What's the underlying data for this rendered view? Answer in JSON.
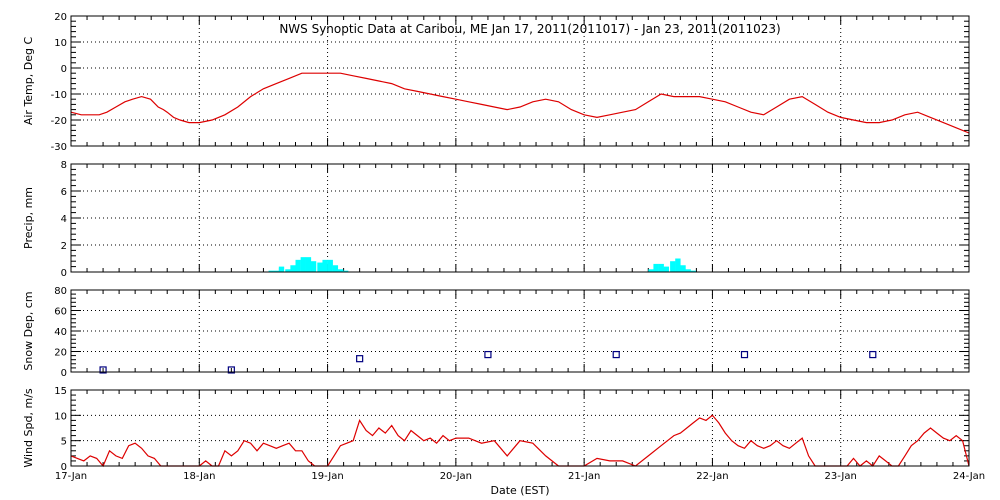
{
  "chart_data": {
    "type": "line",
    "title": "NWS Synoptic Data at Caribou, ME   Jan 17, 2011(2011017) - Jan 23, 2011(2011023)",
    "xlabel": "Date (EST)",
    "x_ticks": [
      "17-Jan",
      "18-Jan",
      "19-Jan",
      "20-Jan",
      "21-Jan",
      "22-Jan",
      "23-Jan",
      "24-Jan"
    ],
    "x_unit": "days since 17-Jan 00:00",
    "xlim": [
      0,
      7
    ],
    "grid": true,
    "panels": [
      {
        "name": "air-temp",
        "ylabel": "Air Temp, Deg C",
        "type": "line",
        "color": "#dd0000",
        "ylim": [
          -30,
          20
        ],
        "yticks": [
          20,
          10,
          0,
          -10,
          -20,
          -30
        ],
        "x": [
          0,
          0.08,
          0.15,
          0.22,
          0.28,
          0.35,
          0.42,
          0.48,
          0.55,
          0.62,
          0.68,
          0.72,
          0.75,
          0.8,
          0.85,
          0.92,
          1.0,
          1.1,
          1.2,
          1.3,
          1.4,
          1.5,
          1.6,
          1.7,
          1.8,
          1.9,
          2.0,
          2.1,
          2.2,
          2.3,
          2.4,
          2.5,
          2.6,
          2.7,
          2.8,
          2.9,
          3.0,
          3.1,
          3.2,
          3.3,
          3.4,
          3.5,
          3.6,
          3.7,
          3.8,
          3.9,
          4.0,
          4.1,
          4.2,
          4.3,
          4.4,
          4.5,
          4.6,
          4.7,
          4.8,
          4.9,
          5.0,
          5.1,
          5.2,
          5.3,
          5.4,
          5.5,
          5.6,
          5.7,
          5.8,
          5.9,
          6.0,
          6.1,
          6.2,
          6.3,
          6.4,
          6.5,
          6.6,
          6.7,
          6.8,
          6.9,
          7.0
        ],
        "y": [
          -17,
          -18,
          -18,
          -18,
          -17,
          -15,
          -13,
          -12,
          -11,
          -12,
          -15,
          -16,
          -17,
          -19,
          -20,
          -21,
          -21,
          -20,
          -18,
          -15,
          -11,
          -8,
          -6,
          -4,
          -2,
          -2,
          -2,
          -2,
          -3,
          -4,
          -5,
          -6,
          -8,
          -9,
          -10,
          -11,
          -12,
          -13,
          -14,
          -15,
          -16,
          -15,
          -13,
          -12,
          -13,
          -16,
          -18,
          -19,
          -18,
          -17,
          -16,
          -13,
          -10,
          -11,
          -11,
          -11,
          -12,
          -13,
          -15,
          -17,
          -18,
          -15,
          -12,
          -11,
          -14,
          -17,
          -19,
          -20,
          -21,
          -21,
          -20,
          -18,
          -17,
          -19,
          -21,
          -23,
          -25
        ]
      },
      {
        "name": "precip",
        "ylabel": "Precip, mm",
        "type": "bar",
        "color": "#00ffff",
        "ylim": [
          0,
          8
        ],
        "yticks": [
          8,
          6,
          4,
          2,
          0
        ],
        "bar_width": 0.0417,
        "x": [
          1.54,
          1.58,
          1.62,
          1.67,
          1.71,
          1.75,
          1.79,
          1.83,
          1.87,
          1.92,
          1.96,
          2.0,
          2.04,
          2.08,
          2.12,
          2.17,
          2.21,
          2.25,
          2.29,
          4.5,
          4.54,
          4.58,
          4.62,
          4.67,
          4.71,
          4.75,
          4.79,
          4.83,
          4.87
        ],
        "values": [
          0.1,
          0.1,
          0.4,
          0.2,
          0.5,
          0.9,
          1.1,
          1.1,
          0.8,
          0.7,
          0.9,
          0.9,
          0.5,
          0.2,
          0.1,
          0,
          0,
          0,
          0,
          0.2,
          0.6,
          0.6,
          0.4,
          0.8,
          1.0,
          0.5,
          0.2,
          0.1,
          0
        ]
      },
      {
        "name": "snow-depth",
        "ylabel": "Snow Dep, cm",
        "type": "scatter",
        "color": "#000080",
        "ylim": [
          0,
          80
        ],
        "yticks": [
          80,
          60,
          40,
          20,
          0
        ],
        "x": [
          0.25,
          1.25,
          2.25,
          3.25,
          4.25,
          5.25,
          6.25
        ],
        "y": [
          2,
          2,
          13,
          17,
          17,
          17,
          17
        ]
      },
      {
        "name": "wind-speed",
        "ylabel": "Wind Spd, m/s",
        "type": "line",
        "color": "#dd0000",
        "ylim": [
          0,
          15
        ],
        "yticks": [
          15,
          10,
          5,
          0
        ],
        "x": [
          0,
          0.05,
          0.1,
          0.15,
          0.2,
          0.25,
          0.3,
          0.35,
          0.4,
          0.45,
          0.5,
          0.55,
          0.6,
          0.65,
          0.7,
          0.75,
          0.8,
          0.85,
          0.9,
          0.95,
          1.0,
          1.05,
          1.1,
          1.15,
          1.2,
          1.25,
          1.3,
          1.35,
          1.4,
          1.45,
          1.5,
          1.55,
          1.6,
          1.65,
          1.7,
          1.75,
          1.8,
          1.85,
          1.9,
          1.95,
          2.0,
          2.05,
          2.1,
          2.15,
          2.2,
          2.25,
          2.3,
          2.35,
          2.4,
          2.45,
          2.5,
          2.55,
          2.6,
          2.65,
          2.7,
          2.75,
          2.8,
          2.85,
          2.9,
          2.95,
          3.0,
          3.1,
          3.2,
          3.3,
          3.4,
          3.5,
          3.6,
          3.7,
          3.8,
          3.9,
          4.0,
          4.1,
          4.2,
          4.3,
          4.4,
          4.5,
          4.6,
          4.65,
          4.7,
          4.75,
          4.8,
          4.85,
          4.9,
          4.95,
          5.0,
          5.05,
          5.1,
          5.15,
          5.2,
          5.25,
          5.3,
          5.35,
          5.4,
          5.45,
          5.5,
          5.55,
          5.6,
          5.65,
          5.7,
          5.75,
          5.8,
          5.85,
          5.9,
          5.95,
          6.0,
          6.05,
          6.1,
          6.15,
          6.2,
          6.25,
          6.3,
          6.35,
          6.4,
          6.45,
          6.5,
          6.55,
          6.6,
          6.65,
          6.7,
          6.75,
          6.8,
          6.85,
          6.9,
          6.95,
          7.0
        ],
        "y": [
          2,
          1.5,
          1,
          2,
          1.5,
          0,
          3,
          2,
          1.5,
          4,
          4.5,
          3.5,
          2,
          1.5,
          0,
          0,
          0,
          0,
          0,
          0,
          0,
          1,
          0,
          0,
          3,
          2,
          3,
          5,
          4.5,
          3,
          4.5,
          4,
          3.5,
          4,
          4.5,
          3,
          3,
          1,
          0,
          0,
          0,
          2,
          4,
          4.5,
          5,
          9,
          7,
          6,
          7.5,
          6.5,
          8,
          6,
          5,
          7,
          6,
          5,
          5.5,
          4.5,
          6,
          5,
          5.5,
          5.5,
          4.5,
          5,
          2,
          5,
          4.5,
          2,
          0,
          0,
          0,
          1.5,
          1,
          1,
          0,
          2,
          4,
          5,
          6,
          6.5,
          7.5,
          8.5,
          9.5,
          9,
          10,
          8.5,
          6.5,
          5,
          4,
          3.5,
          5,
          4,
          3.5,
          4,
          5,
          4,
          3.5,
          4.5,
          5.5,
          2,
          0,
          0,
          0,
          0,
          0,
          0,
          1.5,
          0,
          1,
          0,
          2,
          1,
          0,
          0,
          2,
          4,
          5,
          6.5,
          7.5,
          6.5,
          5.5,
          5,
          6,
          5,
          0
        ]
      }
    ]
  }
}
